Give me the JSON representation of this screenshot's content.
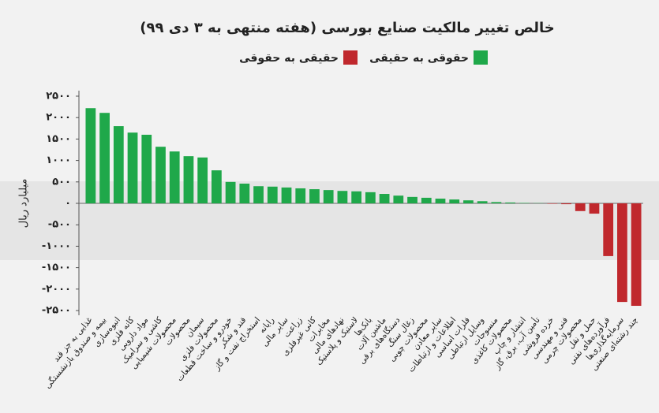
{
  "chart_data": {
    "type": "bar",
    "title": "خالص تغییر مالکیت صنایع بورسی (هفته منتهی به ۳ دی ۹۹)",
    "y_label": "میلیارد ریال",
    "categories": [
      "غذایی به جز قند",
      "بیمه و صندوق بازنشستگی",
      "انبوه‌سازی",
      "کانه فلزی",
      "مواد دارویی",
      "کاشی و سرامیک",
      "محصولات شیمیایی",
      "محصولات",
      "سیمان",
      "محصولات فلزی",
      "خودرو و ساخت قطعات",
      "قند و شکر",
      "استخراج نفت و گاز",
      "رایانه",
      "سایر مالی",
      "زراعت",
      "کانی غیرفلزی",
      "مخابرات",
      "نهادهای مالی",
      "لاستیک و پلاستیک",
      "بانک‌ها",
      "ماشین آلات",
      "دستگاه‌های برقی",
      "زغال سنگ",
      "محصولات چوبی",
      "سایر معادن",
      "اطلاعات و ارتباطات",
      "فلزات اساسی",
      "وسایل ارتباطی",
      "منسوجات",
      "محصولات کاغذی",
      "انتشار و چاپ",
      "تأمین آب، برق، گاز",
      "خرده فروشی",
      "فنی و مهندسی",
      "محصولات چرمی",
      "حمل و نقل",
      "فرآورده‌های نفتی",
      "سرمایه‌گذاری‌ها",
      "چند رشته‌ای صنعتی"
    ],
    "series": [
      {
        "name": "حقوقی به حقیقی",
        "color": "#1fa84a",
        "values": [
          2220,
          2110,
          1800,
          1650,
          1600,
          1320,
          1210,
          1100,
          1070,
          770,
          500,
          460,
          400,
          390,
          370,
          350,
          330,
          310,
          290,
          280,
          260,
          220,
          180,
          150,
          130,
          110,
          90,
          70,
          50,
          30,
          20,
          10,
          5,
          null,
          null,
          null,
          null,
          null,
          null,
          null
        ]
      },
      {
        "name": "حقیقی به حقوقی",
        "color": "#c0282d",
        "values": [
          null,
          null,
          null,
          null,
          null,
          null,
          null,
          null,
          null,
          null,
          null,
          null,
          null,
          null,
          null,
          null,
          null,
          null,
          null,
          null,
          null,
          null,
          null,
          null,
          null,
          null,
          null,
          null,
          null,
          null,
          null,
          null,
          null,
          -10,
          -20,
          -180,
          -240,
          -1230,
          -2300,
          -2390
        ]
      }
    ],
    "ylim": [
      -2500,
      2500
    ],
    "yticks": [
      {
        "value": 2500,
        "label": "۲۵۰۰"
      },
      {
        "value": 2000,
        "label": "۲۰۰۰"
      },
      {
        "value": 1500,
        "label": "۱۵۰۰"
      },
      {
        "value": 1000,
        "label": "۱۰۰۰"
      },
      {
        "value": 500,
        "label": "۵۰۰"
      },
      {
        "value": 0,
        "label": "۰"
      },
      {
        "value": -500,
        "label": "-۵۰۰"
      },
      {
        "value": -1000,
        "label": "-۱۰۰۰"
      },
      {
        "value": -1500,
        "label": "-۱۵۰۰"
      },
      {
        "value": -2000,
        "label": "-۲۰۰۰"
      },
      {
        "value": -2500,
        "label": "-۲۵۰۰"
      }
    ]
  }
}
